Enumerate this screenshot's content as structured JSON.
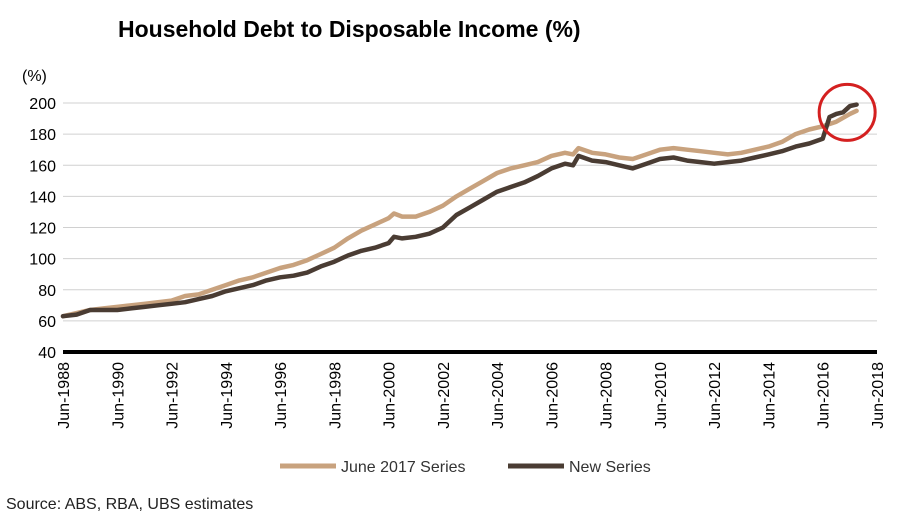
{
  "chart_data": {
    "type": "line",
    "title": "Household Debt to Disposable Income (%)",
    "ylabel": "(%)",
    "xlabel": "",
    "ylim": [
      40,
      200
    ],
    "yticks": [
      40,
      60,
      80,
      100,
      120,
      140,
      160,
      180,
      200
    ],
    "xlim": [
      1988.0,
      2018.0
    ],
    "xticks": [
      {
        "label": "Jun-1988",
        "value": 1988
      },
      {
        "label": "Jun-1990",
        "value": 1990
      },
      {
        "label": "Jun-1992",
        "value": 1992
      },
      {
        "label": "Jun-1994",
        "value": 1994
      },
      {
        "label": "Jun-1996",
        "value": 1996
      },
      {
        "label": "Jun-1998",
        "value": 1998
      },
      {
        "label": "Jun-2000",
        "value": 2000
      },
      {
        "label": "Jun-2002",
        "value": 2002
      },
      {
        "label": "Jun-2004",
        "value": 2004
      },
      {
        "label": "Jun-2006",
        "value": 2006
      },
      {
        "label": "Jun-2008",
        "value": 2008
      },
      {
        "label": "Jun-2010",
        "value": 2010
      },
      {
        "label": "Jun-2012",
        "value": 2012
      },
      {
        "label": "Jun-2014",
        "value": 2014
      },
      {
        "label": "Jun-2016",
        "value": 2016
      },
      {
        "label": "Jun-2018",
        "value": 2018
      }
    ],
    "grid": true,
    "legend_position": "bottom",
    "series": [
      {
        "name": "June 2017 Series",
        "color": "#c8a27e",
        "points": [
          [
            1988.0,
            63
          ],
          [
            1988.5,
            65
          ],
          [
            1989.0,
            67
          ],
          [
            1989.5,
            68
          ],
          [
            1990.0,
            69
          ],
          [
            1990.5,
            70
          ],
          [
            1991.0,
            71
          ],
          [
            1991.5,
            72
          ],
          [
            1992.0,
            73
          ],
          [
            1992.5,
            76
          ],
          [
            1993.0,
            77
          ],
          [
            1993.5,
            80
          ],
          [
            1994.0,
            83
          ],
          [
            1994.5,
            86
          ],
          [
            1995.0,
            88
          ],
          [
            1995.5,
            91
          ],
          [
            1996.0,
            94
          ],
          [
            1996.5,
            96
          ],
          [
            1997.0,
            99
          ],
          [
            1997.5,
            103
          ],
          [
            1998.0,
            107
          ],
          [
            1998.5,
            113
          ],
          [
            1999.0,
            118
          ],
          [
            1999.5,
            122
          ],
          [
            2000.0,
            126
          ],
          [
            2000.2,
            129
          ],
          [
            2000.5,
            127
          ],
          [
            2001.0,
            127
          ],
          [
            2001.5,
            130
          ],
          [
            2002.0,
            134
          ],
          [
            2002.5,
            140
          ],
          [
            2003.0,
            145
          ],
          [
            2003.5,
            150
          ],
          [
            2004.0,
            155
          ],
          [
            2004.5,
            158
          ],
          [
            2005.0,
            160
          ],
          [
            2005.5,
            162
          ],
          [
            2006.0,
            166
          ],
          [
            2006.5,
            168
          ],
          [
            2006.8,
            167
          ],
          [
            2007.0,
            171
          ],
          [
            2007.5,
            168
          ],
          [
            2008.0,
            167
          ],
          [
            2008.5,
            165
          ],
          [
            2009.0,
            164
          ],
          [
            2009.5,
            167
          ],
          [
            2010.0,
            170
          ],
          [
            2010.5,
            171
          ],
          [
            2011.0,
            170
          ],
          [
            2011.5,
            169
          ],
          [
            2012.0,
            168
          ],
          [
            2012.5,
            167
          ],
          [
            2013.0,
            168
          ],
          [
            2013.5,
            170
          ],
          [
            2014.0,
            172
          ],
          [
            2014.5,
            175
          ],
          [
            2015.0,
            180
          ],
          [
            2015.5,
            183
          ],
          [
            2016.0,
            185
          ],
          [
            2016.5,
            188
          ],
          [
            2017.0,
            193
          ],
          [
            2017.25,
            195
          ]
        ]
      },
      {
        "name": "New Series",
        "color": "#4a3c33",
        "points": [
          [
            1988.0,
            63
          ],
          [
            1988.5,
            64
          ],
          [
            1989.0,
            67
          ],
          [
            1989.5,
            67
          ],
          [
            1990.0,
            67
          ],
          [
            1990.5,
            68
          ],
          [
            1991.0,
            69
          ],
          [
            1991.5,
            70
          ],
          [
            1992.0,
            71
          ],
          [
            1992.5,
            72
          ],
          [
            1993.0,
            74
          ],
          [
            1993.5,
            76
          ],
          [
            1994.0,
            79
          ],
          [
            1994.5,
            81
          ],
          [
            1995.0,
            83
          ],
          [
            1995.5,
            86
          ],
          [
            1996.0,
            88
          ],
          [
            1996.5,
            89
          ],
          [
            1997.0,
            91
          ],
          [
            1997.5,
            95
          ],
          [
            1998.0,
            98
          ],
          [
            1998.5,
            102
          ],
          [
            1999.0,
            105
          ],
          [
            1999.5,
            107
          ],
          [
            2000.0,
            110
          ],
          [
            2000.2,
            114
          ],
          [
            2000.5,
            113
          ],
          [
            2001.0,
            114
          ],
          [
            2001.5,
            116
          ],
          [
            2002.0,
            120
          ],
          [
            2002.5,
            128
          ],
          [
            2003.0,
            133
          ],
          [
            2003.5,
            138
          ],
          [
            2004.0,
            143
          ],
          [
            2004.5,
            146
          ],
          [
            2005.0,
            149
          ],
          [
            2005.5,
            153
          ],
          [
            2006.0,
            158
          ],
          [
            2006.5,
            161
          ],
          [
            2006.8,
            160
          ],
          [
            2007.0,
            166
          ],
          [
            2007.5,
            163
          ],
          [
            2008.0,
            162
          ],
          [
            2008.5,
            160
          ],
          [
            2009.0,
            158
          ],
          [
            2009.5,
            161
          ],
          [
            2010.0,
            164
          ],
          [
            2010.5,
            165
          ],
          [
            2011.0,
            163
          ],
          [
            2011.5,
            162
          ],
          [
            2012.0,
            161
          ],
          [
            2012.5,
            162
          ],
          [
            2013.0,
            163
          ],
          [
            2013.5,
            165
          ],
          [
            2014.0,
            167
          ],
          [
            2014.5,
            169
          ],
          [
            2015.0,
            172
          ],
          [
            2015.5,
            174
          ],
          [
            2016.0,
            177
          ],
          [
            2016.25,
            191
          ],
          [
            2016.5,
            193
          ],
          [
            2016.75,
            194
          ],
          [
            2017.0,
            198
          ],
          [
            2017.25,
            199
          ]
        ]
      }
    ],
    "annotations": [
      {
        "type": "circle",
        "color": "#d42020",
        "center_x": 2016.9,
        "center_y": 194
      }
    ]
  },
  "footer": {
    "source": "Source:  ABS, RBA, UBS estimates"
  }
}
